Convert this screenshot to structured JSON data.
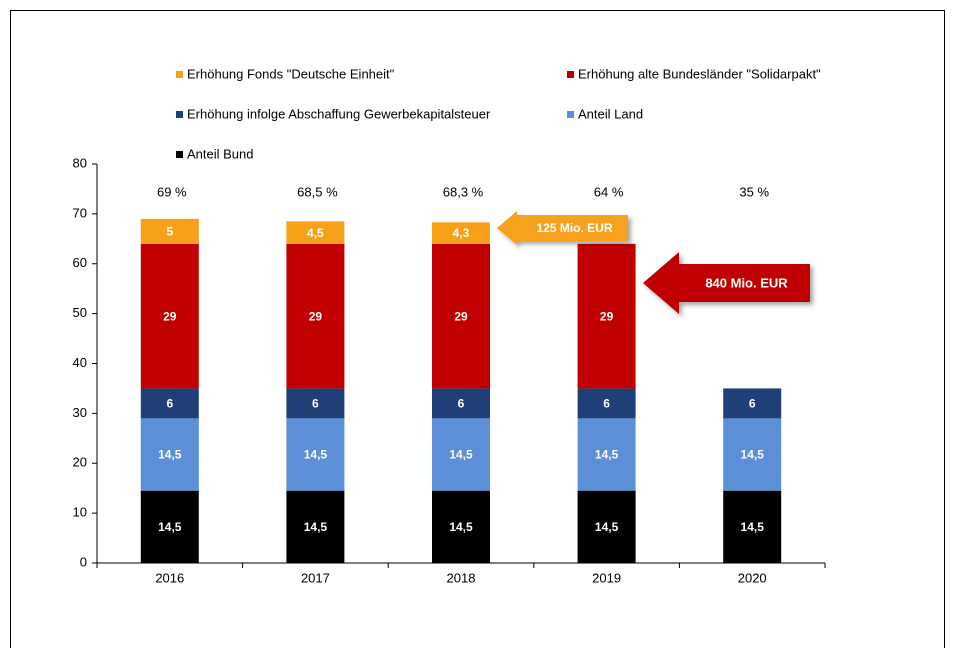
{
  "chart_data": {
    "type": "stacked_bar",
    "categories": [
      "2016",
      "2017",
      "2018",
      "2019",
      "2020"
    ],
    "series": [
      {
        "name": "Anteil Bund",
        "color": "#000000",
        "values": [
          14.5,
          14.5,
          14.5,
          14.5,
          14.5
        ],
        "value_labels": [
          "14,5",
          "14,5",
          "14,5",
          "14,5",
          "14,5"
        ]
      },
      {
        "name": "Anteil Land",
        "color": "#5b8fd6",
        "values": [
          14.5,
          14.5,
          14.5,
          14.5,
          14.5
        ],
        "value_labels": [
          "14,5",
          "14,5",
          "14,5",
          "14,5",
          "14,5"
        ]
      },
      {
        "name": "Erhöhung infolge Abschaffung Gewerbekapitalsteuer",
        "color": "#1f3f78",
        "values": [
          6,
          6,
          6,
          6,
          6
        ]
      },
      {
        "name": "Erhöhung alte Bundesländer \"Solidarpakt\"",
        "color": "#c00000",
        "values": [
          29,
          29,
          29,
          29,
          null
        ]
      },
      {
        "name": "Erhöhung Fonds \"Deutsche Einheit\"",
        "color": "#f7a11a",
        "values": [
          5,
          4.5,
          4.3,
          null,
          null
        ],
        "value_labels": [
          "5",
          "4,5",
          "4,3",
          null,
          null
        ]
      }
    ],
    "totals": [
      69,
      68.5,
      68.3,
      64,
      35
    ],
    "total_labels": [
      "69 %",
      "68,5 %",
      "68,3 %",
      "64 %",
      "35 %"
    ],
    "annotations": [
      {
        "text": "125 Mio. EUR",
        "color": "#f7a11a"
      },
      {
        "text": "840 Mio. EUR",
        "color": "#c00000"
      }
    ],
    "ylim": [
      0,
      80
    ],
    "yticks": [
      0,
      10,
      20,
      30,
      40,
      50,
      60,
      70,
      80
    ],
    "grid": false
  }
}
